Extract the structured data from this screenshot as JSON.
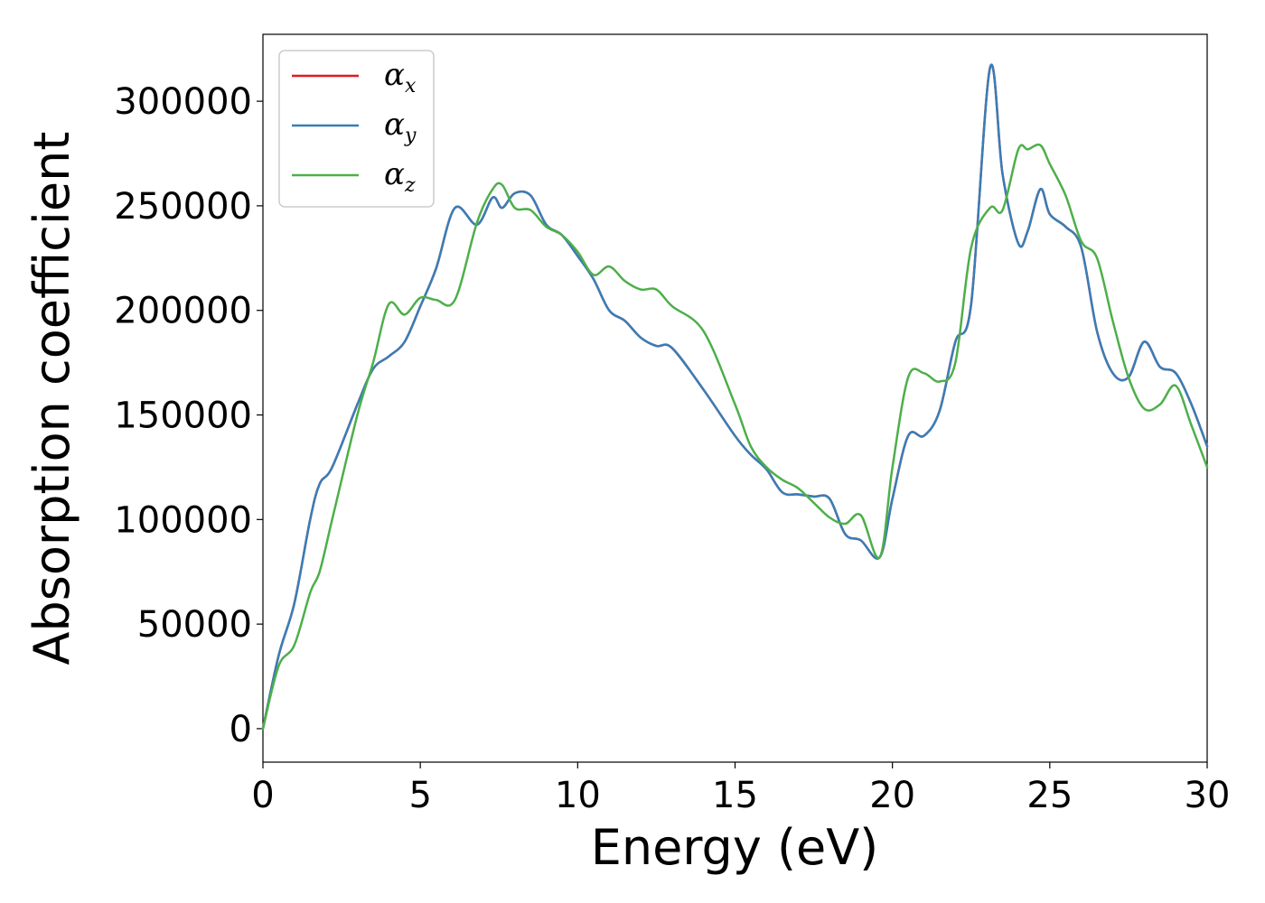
{
  "chart_data": {
    "type": "line",
    "xlabel": "Energy (eV)",
    "ylabel": "Absorption coefficient",
    "xlim": [
      0,
      30
    ],
    "ylim": [
      -16000,
      332000
    ],
    "xticks": [
      0,
      5,
      10,
      15,
      20,
      25,
      30
    ],
    "yticks": [
      0,
      50000,
      100000,
      150000,
      200000,
      250000,
      300000
    ],
    "grid": false,
    "legend_position": "upper-left",
    "x": [
      0,
      0.5,
      1,
      1.5,
      1.8,
      2.2,
      3,
      3.5,
      4,
      4.5,
      5,
      5.5,
      6.1,
      6.8,
      7.3,
      7.6,
      8,
      8.5,
      9,
      9.5,
      10,
      10.5,
      11,
      11.5,
      12,
      12.5,
      13,
      14,
      15,
      15.5,
      16,
      16.5,
      17,
      17.5,
      18,
      18.5,
      19,
      19.6,
      20,
      20.5,
      21,
      21.5,
      22,
      22.5,
      23.1,
      23.5,
      24,
      24.3,
      24.7,
      25,
      25.5,
      26,
      26.5,
      27,
      27.5,
      28,
      28.5,
      29,
      29.5,
      30
    ],
    "series": [
      {
        "name": "x",
        "color": "#e41a1c",
        "values": [
          0,
          35000,
          60000,
          100000,
          117000,
          125000,
          155000,
          172000,
          178000,
          185000,
          202000,
          220000,
          249000,
          241000,
          254000,
          249000,
          256000,
          255000,
          241000,
          236000,
          226000,
          215000,
          200000,
          195000,
          187000,
          183000,
          182000,
          162000,
          140000,
          131000,
          124000,
          113000,
          112000,
          111000,
          110000,
          93000,
          90000,
          82000,
          110000,
          140000,
          140000,
          152000,
          185000,
          203000,
          316000,
          265000,
          232000,
          238000,
          258000,
          246000,
          240000,
          230000,
          190000,
          170000,
          168000,
          185000,
          173000,
          170000,
          155000,
          135000
        ]
      },
      {
        "name": "y",
        "color": "#377eb8",
        "values": [
          0,
          35000,
          60000,
          100000,
          117000,
          125000,
          155000,
          172000,
          178000,
          185000,
          202000,
          220000,
          249000,
          241000,
          254000,
          249000,
          256000,
          255000,
          241000,
          236000,
          226000,
          215000,
          200000,
          195000,
          187000,
          183000,
          182000,
          162000,
          140000,
          131000,
          124000,
          113000,
          112000,
          111000,
          110000,
          93000,
          90000,
          82000,
          110000,
          140000,
          140000,
          152000,
          185000,
          203000,
          316000,
          265000,
          232000,
          238000,
          258000,
          246000,
          240000,
          230000,
          190000,
          170000,
          168000,
          185000,
          173000,
          170000,
          155000,
          135000
        ]
      },
      {
        "name": "z",
        "color": "#4daf4a",
        "values": [
          0,
          30000,
          40000,
          65000,
          75000,
          100000,
          150000,
          175000,
          203000,
          198000,
          206000,
          205000,
          205000,
          242000,
          258000,
          260000,
          249000,
          248000,
          240000,
          236000,
          228000,
          217000,
          221000,
          214000,
          210000,
          210000,
          202000,
          190000,
          155000,
          135000,
          125000,
          119000,
          115000,
          108000,
          101000,
          98000,
          102000,
          82000,
          125000,
          168000,
          170000,
          166000,
          175000,
          230000,
          249000,
          248000,
          277000,
          277000,
          279000,
          270000,
          255000,
          233000,
          225000,
          195000,
          168000,
          153000,
          155000,
          164000,
          145000,
          125000
        ]
      }
    ]
  }
}
